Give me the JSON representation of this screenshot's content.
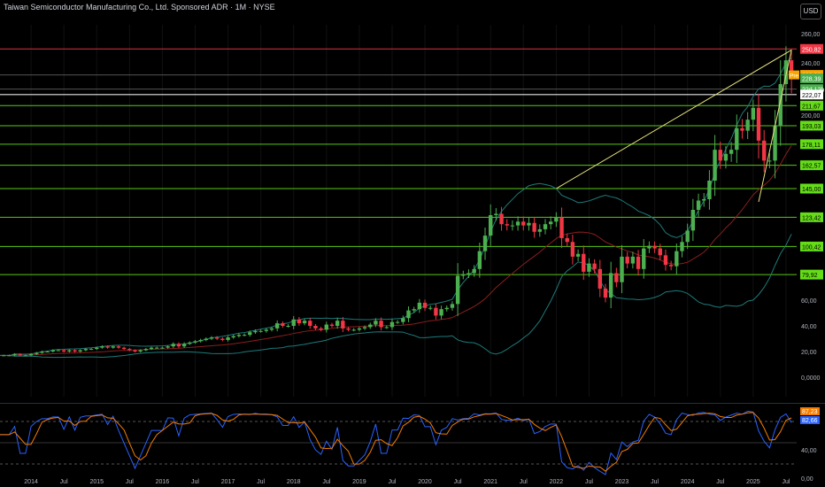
{
  "header": {
    "title": "Taiwan Semiconductor Manufacturing Co., Ltd. Sponsored ADR · 1M · NYSE",
    "currency_button": "USD"
  },
  "chart_data": [
    {
      "type": "candlestick",
      "interval": "1M",
      "y_axis": {
        "min": 0,
        "max": 260,
        "ticks": [
          "260,00",
          "240,00",
          "200,00",
          "80,00",
          "60,00",
          "40,00",
          "20,00",
          "0,0000"
        ]
      },
      "x_axis_ticks": [
        "2014",
        "Jul",
        "2015",
        "Jul",
        "2016",
        "Jul",
        "2017",
        "Jul",
        "2018",
        "Jul",
        "2019",
        "Jul",
        "2020",
        "Jul",
        "2021",
        "Jul",
        "2022",
        "Jul",
        "2023",
        "Jul",
        "2024",
        "Jul",
        "2025",
        "Jul"
      ],
      "x_range": [
        "2013-07",
        "2025-08"
      ],
      "horizontal_levels": [
        {
          "value": 250.82,
          "label": "250,82",
          "color": "#f23645"
        },
        {
          "value": 230.93,
          "label": "230,93",
          "color": "#f7a600",
          "tag": "Pre"
        },
        {
          "value": 228.39,
          "label": "228,39",
          "color": "#4caf50"
        },
        {
          "value": 224.12,
          "label": "22d 12h",
          "color": "#4caf50"
        },
        {
          "value": 222.07,
          "label": "222,07",
          "color": "#ffffff"
        },
        {
          "value": 211.67,
          "label": "211,67",
          "color": "#64dd17"
        },
        {
          "value": 193.03,
          "label": "193,03",
          "color": "#64dd17"
        },
        {
          "value": 178.11,
          "label": "178,11",
          "color": "#64dd17"
        },
        {
          "value": 162.57,
          "label": "162,57",
          "color": "#64dd17"
        },
        {
          "value": 145.0,
          "label": "145,00",
          "color": "#64dd17"
        },
        {
          "value": 123.42,
          "label": "123,42",
          "color": "#64dd17"
        },
        {
          "value": 100.42,
          "label": "100,42",
          "color": "#64dd17"
        },
        {
          "value": 79.92,
          "label": "79,92",
          "color": "#64dd17"
        }
      ],
      "trendlines": [
        {
          "from": [
            "2022-01",
            145
          ],
          "to": [
            "2025-08",
            250
          ],
          "color": "#e6e27a"
        },
        {
          "from": [
            "2025-02",
            135
          ],
          "to": [
            "2025-08",
            250
          ],
          "color": "#e6e27a"
        }
      ],
      "closes": [
        [
          2013,
          7,
          17
        ],
        [
          2013,
          8,
          17
        ],
        [
          2013,
          9,
          17
        ],
        [
          2013,
          10,
          18
        ],
        [
          2013,
          11,
          17
        ],
        [
          2013,
          12,
          17
        ],
        [
          2014,
          1,
          18
        ],
        [
          2014,
          2,
          19
        ],
        [
          2014,
          3,
          20
        ],
        [
          2014,
          4,
          20
        ],
        [
          2014,
          5,
          21
        ],
        [
          2014,
          6,
          21
        ],
        [
          2014,
          7,
          20
        ],
        [
          2014,
          8,
          21
        ],
        [
          2014,
          9,
          20
        ],
        [
          2014,
          10,
          21
        ],
        [
          2014,
          11,
          22
        ],
        [
          2014,
          12,
          22
        ],
        [
          2015,
          1,
          23
        ],
        [
          2015,
          2,
          24
        ],
        [
          2015,
          3,
          23
        ],
        [
          2015,
          4,
          24
        ],
        [
          2015,
          5,
          23
        ],
        [
          2015,
          6,
          22
        ],
        [
          2015,
          7,
          21
        ],
        [
          2015,
          8,
          20
        ],
        [
          2015,
          9,
          21
        ],
        [
          2015,
          10,
          22
        ],
        [
          2015,
          11,
          23
        ],
        [
          2015,
          12,
          23
        ],
        [
          2016,
          1,
          23
        ],
        [
          2016,
          2,
          24
        ],
        [
          2016,
          3,
          26
        ],
        [
          2016,
          4,
          24
        ],
        [
          2016,
          5,
          26
        ],
        [
          2016,
          6,
          27
        ],
        [
          2016,
          7,
          28
        ],
        [
          2016,
          8,
          29
        ],
        [
          2016,
          9,
          30
        ],
        [
          2016,
          10,
          31
        ],
        [
          2016,
          11,
          30
        ],
        [
          2016,
          12,
          29
        ],
        [
          2017,
          1,
          31
        ],
        [
          2017,
          2,
          32
        ],
        [
          2017,
          3,
          33
        ],
        [
          2017,
          4,
          33
        ],
        [
          2017,
          5,
          35
        ],
        [
          2017,
          6,
          36
        ],
        [
          2017,
          7,
          36
        ],
        [
          2017,
          8,
          37
        ],
        [
          2017,
          9,
          38
        ],
        [
          2017,
          10,
          42
        ],
        [
          2017,
          11,
          40
        ],
        [
          2017,
          12,
          40
        ],
        [
          2018,
          1,
          45
        ],
        [
          2018,
          2,
          42
        ],
        [
          2018,
          3,
          44
        ],
        [
          2018,
          4,
          40
        ],
        [
          2018,
          5,
          38
        ],
        [
          2018,
          6,
          37
        ],
        [
          2018,
          7,
          41
        ],
        [
          2018,
          8,
          40
        ],
        [
          2018,
          9,
          44
        ],
        [
          2018,
          10,
          38
        ],
        [
          2018,
          11,
          37
        ],
        [
          2018,
          12,
          37
        ],
        [
          2019,
          1,
          38
        ],
        [
          2019,
          2,
          39
        ],
        [
          2019,
          3,
          41
        ],
        [
          2019,
          4,
          44
        ],
        [
          2019,
          5,
          39
        ],
        [
          2019,
          6,
          39
        ],
        [
          2019,
          7,
          43
        ],
        [
          2019,
          8,
          43
        ],
        [
          2019,
          9,
          46
        ],
        [
          2019,
          10,
          52
        ],
        [
          2019,
          11,
          53
        ],
        [
          2019,
          12,
          58
        ],
        [
          2020,
          1,
          54
        ],
        [
          2020,
          2,
          54
        ],
        [
          2020,
          3,
          48
        ],
        [
          2020,
          4,
          53
        ],
        [
          2020,
          5,
          54
        ],
        [
          2020,
          6,
          57
        ],
        [
          2020,
          7,
          79
        ],
        [
          2020,
          8,
          80
        ],
        [
          2020,
          9,
          81
        ],
        [
          2020,
          10,
          84
        ],
        [
          2020,
          11,
          97
        ],
        [
          2020,
          12,
          109
        ],
        [
          2021,
          1,
          125
        ],
        [
          2021,
          2,
          126
        ],
        [
          2021,
          3,
          118
        ],
        [
          2021,
          4,
          117
        ],
        [
          2021,
          5,
          117
        ],
        [
          2021,
          6,
          120
        ],
        [
          2021,
          7,
          117
        ],
        [
          2021,
          8,
          119
        ],
        [
          2021,
          9,
          112
        ],
        [
          2021,
          10,
          114
        ],
        [
          2021,
          11,
          118
        ],
        [
          2021,
          12,
          120
        ],
        [
          2022,
          1,
          123
        ],
        [
          2022,
          2,
          107
        ],
        [
          2022,
          3,
          104
        ],
        [
          2022,
          4,
          93
        ],
        [
          2022,
          5,
          95
        ],
        [
          2022,
          6,
          82
        ],
        [
          2022,
          7,
          88
        ],
        [
          2022,
          8,
          84
        ],
        [
          2022,
          9,
          69
        ],
        [
          2022,
          10,
          62
        ],
        [
          2022,
          11,
          81
        ],
        [
          2022,
          12,
          74
        ],
        [
          2023,
          1,
          93
        ],
        [
          2023,
          2,
          88
        ],
        [
          2023,
          3,
          93
        ],
        [
          2023,
          4,
          84
        ],
        [
          2023,
          5,
          99
        ],
        [
          2023,
          6,
          101
        ],
        [
          2023,
          7,
          99
        ],
        [
          2023,
          8,
          94
        ],
        [
          2023,
          9,
          87
        ],
        [
          2023,
          10,
          86
        ],
        [
          2023,
          11,
          97
        ],
        [
          2023,
          12,
          104
        ],
        [
          2024,
          1,
          113
        ],
        [
          2024,
          2,
          129
        ],
        [
          2024,
          3,
          136
        ],
        [
          2024,
          4,
          137
        ],
        [
          2024,
          5,
          151
        ],
        [
          2024,
          6,
          174
        ],
        [
          2024,
          7,
          166
        ],
        [
          2024,
          8,
          171
        ],
        [
          2024,
          9,
          174
        ],
        [
          2024,
          10,
          191
        ],
        [
          2024,
          11,
          189
        ],
        [
          2024,
          12,
          197
        ],
        [
          2025,
          1,
          209
        ],
        [
          2025,
          2,
          181
        ],
        [
          2025,
          3,
          166
        ],
        [
          2025,
          4,
          166
        ],
        [
          2025,
          5,
          193
        ],
        [
          2025,
          6,
          226
        ],
        [
          2025,
          7,
          242
        ],
        [
          2025,
          8,
          231
        ]
      ]
    },
    {
      "type": "line",
      "name": "RSI pane",
      "y_axis": {
        "min": 0,
        "max": 100,
        "ticks": [
          "40,00",
          "0,00"
        ]
      },
      "series": [
        {
          "label": "87,23",
          "color": "#f57c00"
        },
        {
          "label": "82,66",
          "color": "#2962ff"
        }
      ]
    }
  ]
}
